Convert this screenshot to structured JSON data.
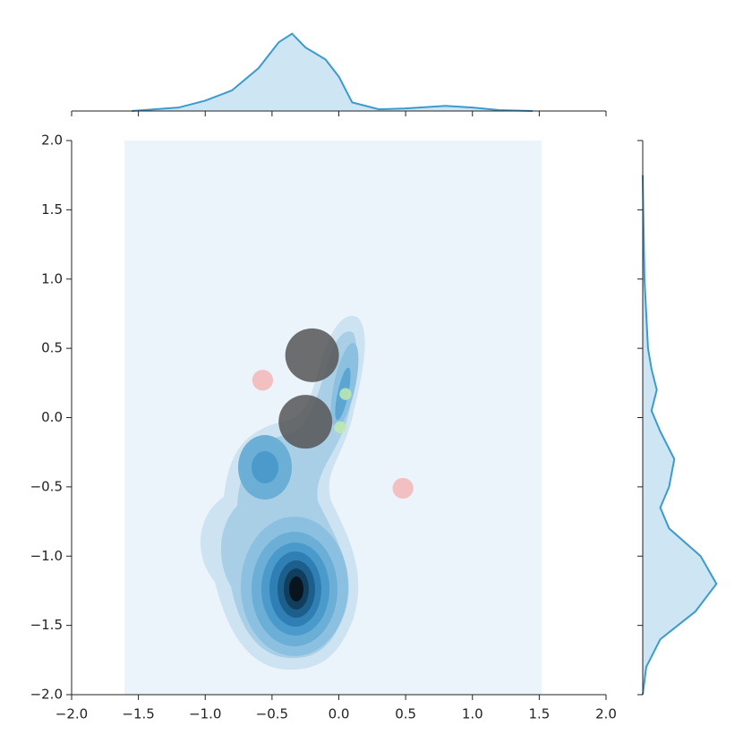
{
  "chart_data": {
    "type": "scatter",
    "xlim": [
      -2,
      2
    ],
    "ylim": [
      -2,
      2
    ],
    "xticks": [
      {
        "value": -2,
        "label": "−2.0"
      },
      {
        "value": -1.5,
        "label": "−1.5"
      },
      {
        "value": -1,
        "label": "−1.0"
      },
      {
        "value": -0.5,
        "label": "−0.5"
      },
      {
        "value": 0,
        "label": "0.0"
      },
      {
        "value": 0.5,
        "label": "0.5"
      },
      {
        "value": 1,
        "label": "1.0"
      },
      {
        "value": 1.5,
        "label": "1.5"
      },
      {
        "value": 2,
        "label": "2.0"
      }
    ],
    "yticks": [
      {
        "value": -2,
        "label": "−2.0"
      },
      {
        "value": -1.5,
        "label": "−1.5"
      },
      {
        "value": -1,
        "label": "−1.0"
      },
      {
        "value": -0.5,
        "label": "−0.5"
      },
      {
        "value": 0,
        "label": "0.0"
      },
      {
        "value": 0.5,
        "label": "0.5"
      },
      {
        "value": 1,
        "label": "1.0"
      },
      {
        "value": 1.5,
        "label": "1.5"
      },
      {
        "value": 2,
        "label": "2.0"
      }
    ],
    "x": [
      -0.2,
      -0.25,
      -0.57,
      0.48,
      0.05,
      0.01
    ],
    "values": [
      0.45,
      -0.03,
      0.27,
      -0.51,
      0.17,
      -0.07
    ],
    "sizes": [
      2000,
      2000,
      300,
      300,
      100,
      100
    ],
    "colors": [
      "#555555",
      "#555555",
      "#f4b6b6",
      "#f4b6b6",
      "#bfeab0",
      "#bfeab0"
    ],
    "top_density": {
      "color": "#3b9ad0",
      "ylim": [
        0,
        0.5
      ],
      "x": [
        -1.55,
        -1.2,
        -1.0,
        -0.8,
        -0.6,
        -0.45,
        -0.35,
        -0.25,
        -0.1,
        0.0,
        0.1,
        0.3,
        0.5,
        0.8,
        1.0,
        1.2,
        1.45
      ],
      "values": [
        0,
        0.02,
        0.06,
        0.12,
        0.25,
        0.4,
        0.45,
        0.37,
        0.3,
        0.2,
        0.05,
        0.01,
        0.015,
        0.03,
        0.02,
        0.005,
        0
      ]
    },
    "right_density": {
      "color": "#3b9ad0",
      "xlim": [
        0,
        0.5
      ],
      "y": [
        -2.0,
        -1.8,
        -1.6,
        -1.4,
        -1.2,
        -1.0,
        -0.8,
        -0.65,
        -0.5,
        -0.3,
        -0.1,
        0.05,
        0.2,
        0.35,
        0.5,
        1.0,
        1.5,
        1.75
      ],
      "values": [
        0,
        0.02,
        0.1,
        0.3,
        0.42,
        0.33,
        0.15,
        0.1,
        0.15,
        0.18,
        0.1,
        0.05,
        0.08,
        0.05,
        0.03,
        0.01,
        0.003,
        0
      ]
    }
  }
}
